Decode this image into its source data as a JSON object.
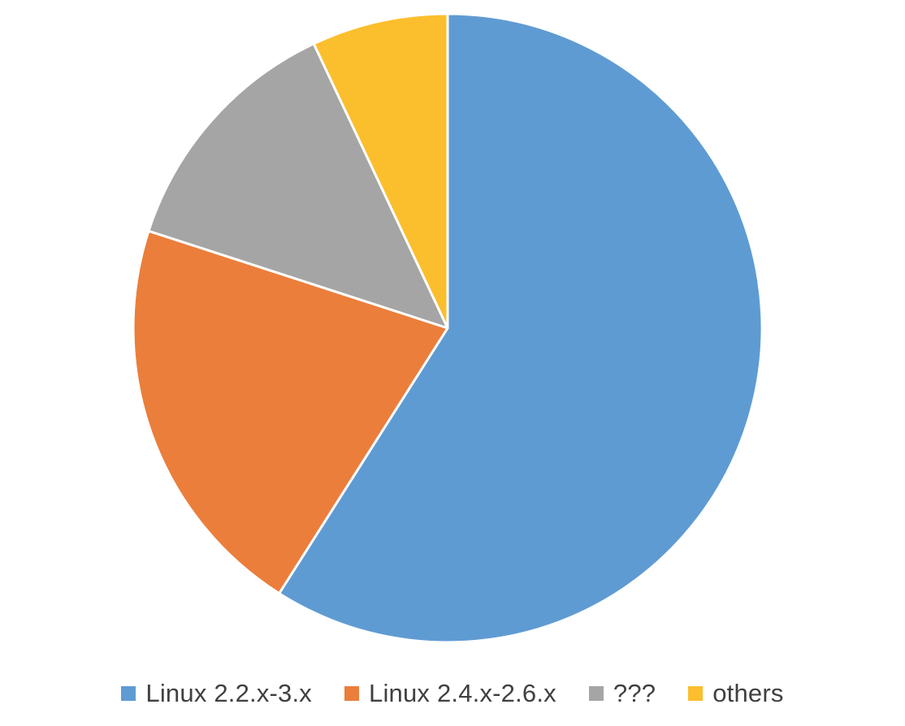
{
  "chart_data": {
    "type": "pie",
    "title": "",
    "categories": [
      "Linux 2.2.x-3.x",
      "Linux 2.4.x-2.6.x",
      "???",
      "others"
    ],
    "values": [
      59,
      21,
      13,
      7
    ],
    "colors": [
      "#5F9BD3",
      "#EB7E3B",
      "#A5A5A5",
      "#FBBE2D"
    ],
    "start_angle_deg": 0,
    "direction": "clockwise",
    "legend_position": "bottom"
  },
  "legend": {
    "items": [
      {
        "label": "Linux 2.2.x-3.x",
        "color": "#5F9BD3"
      },
      {
        "label": "Linux 2.4.x-2.6.x",
        "color": "#EB7E3B"
      },
      {
        "label": "???",
        "color": "#A5A5A5"
      },
      {
        "label": "others",
        "color": "#FBBE2D"
      }
    ]
  }
}
